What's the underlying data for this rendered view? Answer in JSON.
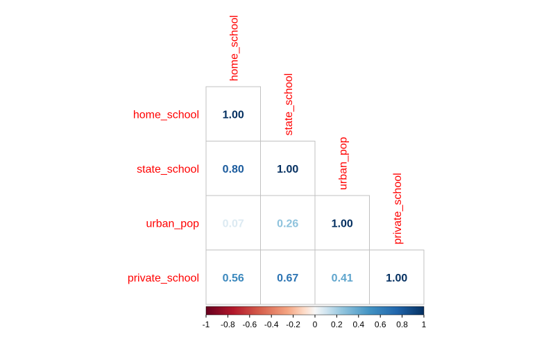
{
  "chart_data": {
    "type": "heatmap",
    "layout": "lower-triangle correlation matrix",
    "variables": [
      "home_school",
      "state_school",
      "urban_pop",
      "private_school"
    ],
    "matrix": [
      [
        1.0,
        null,
        null,
        null
      ],
      [
        0.8,
        1.0,
        null,
        null
      ],
      [
        0.07,
        0.26,
        1.0,
        null
      ],
      [
        0.56,
        0.67,
        0.41,
        1.0
      ]
    ],
    "value_labels": [
      [
        "1.00",
        "",
        "",
        ""
      ],
      [
        "0.80",
        "1.00",
        "",
        ""
      ],
      [
        "0.07",
        "0.26",
        "1.00",
        ""
      ],
      [
        "0.56",
        "0.67",
        "0.41",
        "1.00"
      ]
    ],
    "colorbar": {
      "range": [
        -1,
        1
      ],
      "ticks": [
        "-1",
        "-0.8",
        "-0.6",
        "-0.4",
        "-0.2",
        "0",
        "0.2",
        "0.4",
        "0.6",
        "0.8",
        "1"
      ],
      "placement": "bottom"
    },
    "colors": {
      "label": "#ff0000",
      "negative_end": "#67001f",
      "mid": "#f7f7f7",
      "positive_end": "#053061",
      "grid": "#c0c0c0"
    }
  }
}
